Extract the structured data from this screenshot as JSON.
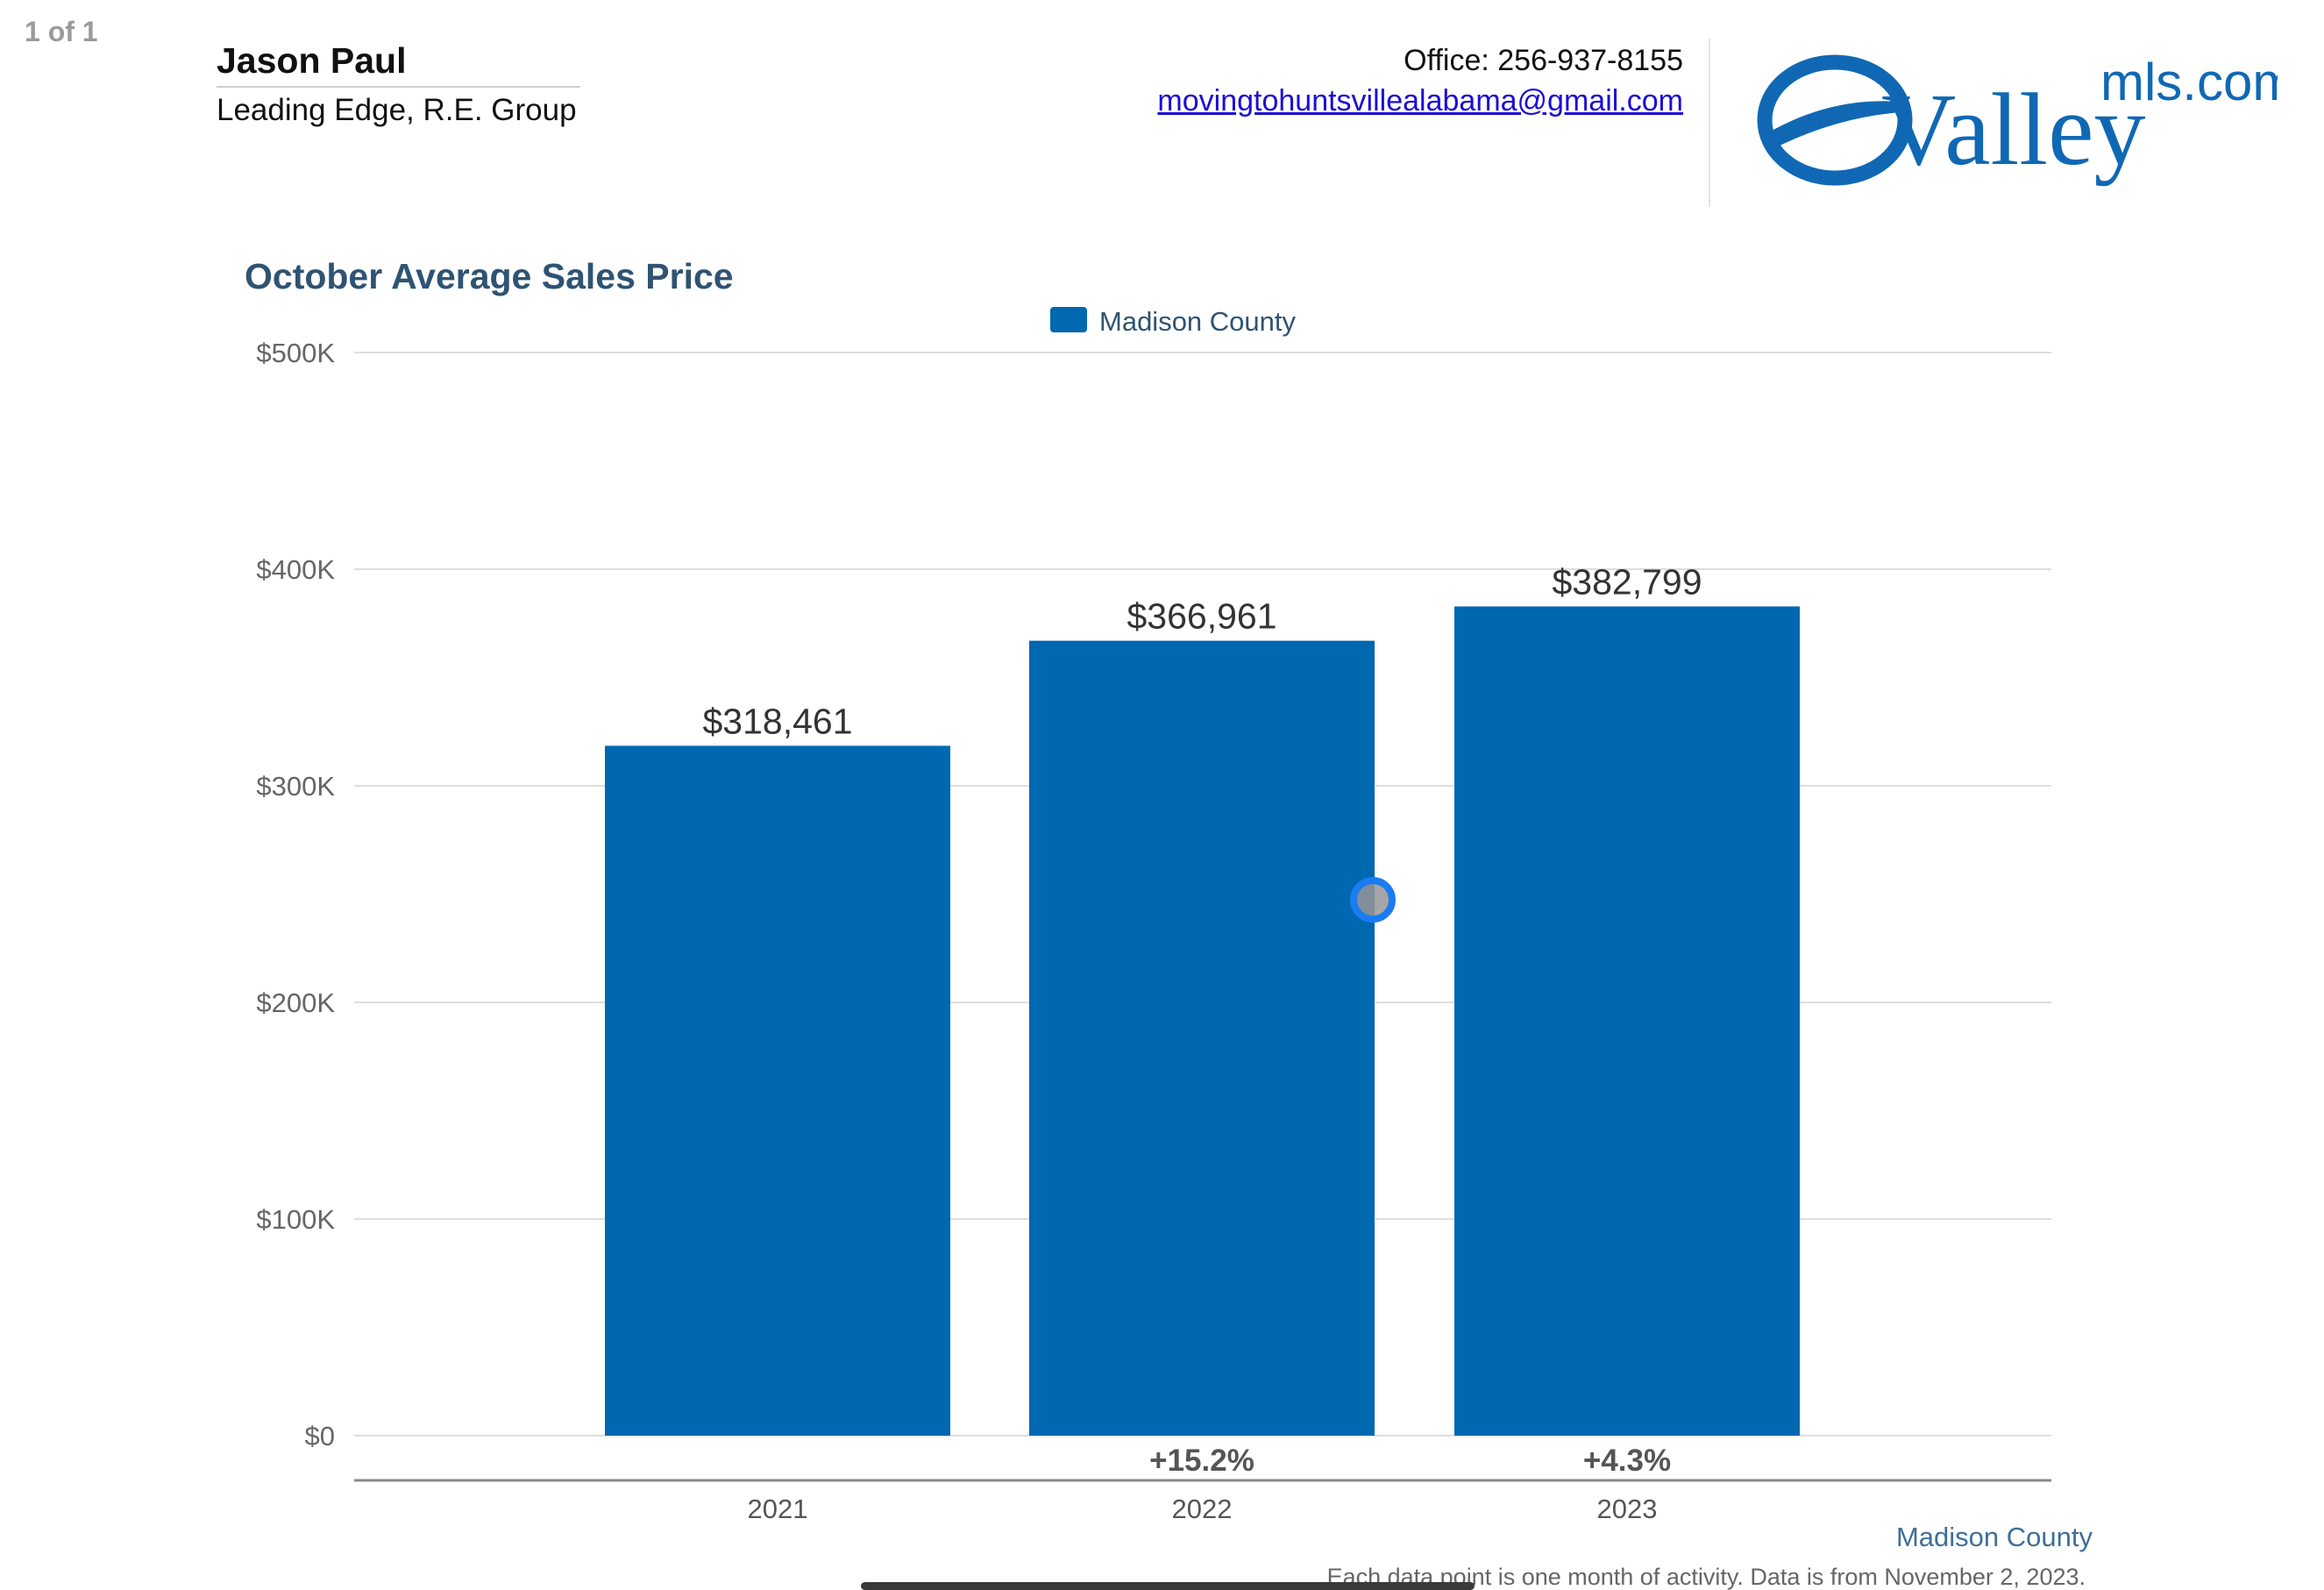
{
  "viewer": {
    "page_indicator": "1 of 1"
  },
  "agent": {
    "name": "Jason Paul",
    "company": "Leading Edge, R.E. Group",
    "office": "Office: 256-937-8155",
    "email": "movingtohuntsvillealabama@gmail.com"
  },
  "logo": {
    "wordmark": "Valley",
    "suffix": "mls.com",
    "color": "#1068b4"
  },
  "chart_data": {
    "type": "bar",
    "title": "October Average Sales Price",
    "xlabel": "",
    "ylabel": "",
    "categories": [
      "2021",
      "2022",
      "2023"
    ],
    "series": [
      {
        "name": "Madison County",
        "values": [
          318461,
          366961,
          382799
        ],
        "labels": [
          "$318,461",
          "$366,961",
          "$382,799"
        ],
        "color": "#0067b1"
      }
    ],
    "ylim": [
      0,
      500000
    ],
    "yticks": [
      {
        "value": 0,
        "label": "$0"
      },
      {
        "value": 100000,
        "label": "$100K"
      },
      {
        "value": 200000,
        "label": "$200K"
      },
      {
        "value": 300000,
        "label": "$300K"
      },
      {
        "value": 400000,
        "label": "$400K"
      },
      {
        "value": 500000,
        "label": "$500K"
      }
    ],
    "changes": [
      "",
      "+15.2%",
      "+4.3%"
    ],
    "legend_position": "top-center",
    "grid": true
  },
  "footer": {
    "series_label": "Madison County",
    "note": "Each data point is one month of activity. Data is from November 2, 2023."
  }
}
